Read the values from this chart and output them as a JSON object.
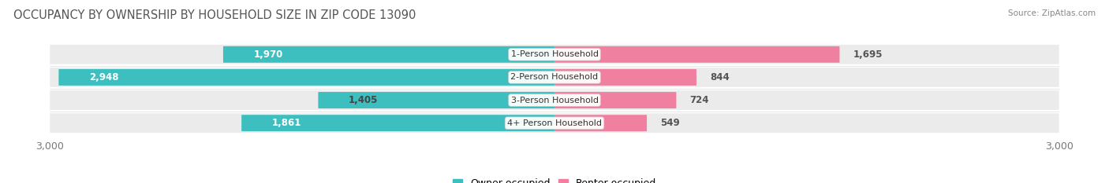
{
  "title": "OCCUPANCY BY OWNERSHIP BY HOUSEHOLD SIZE IN ZIP CODE 13090",
  "source": "Source: ZipAtlas.com",
  "categories": [
    "1-Person Household",
    "2-Person Household",
    "3-Person Household",
    "4+ Person Household"
  ],
  "owner_values": [
    1970,
    2948,
    1405,
    1861
  ],
  "renter_values": [
    1695,
    844,
    724,
    549
  ],
  "owner_color": "#3DBFBF",
  "renter_color": "#F080A0",
  "owner_color_light": "#7DD8D8",
  "renter_color_light": "#F4B0C8",
  "axis_max": 3000,
  "bar_bg_color": "#EBEBEB",
  "bg_color": "#FFFFFF",
  "bar_height": 0.72,
  "bg_bar_height": 0.85,
  "title_fontsize": 10.5,
  "tick_fontsize": 9,
  "bar_label_fontsize": 8.5,
  "category_fontsize": 8,
  "legend_fontsize": 9,
  "owner_label_color_dark": "#555555",
  "owner_label_color_light": "#FFFFFF",
  "renter_label_color": "#555555"
}
